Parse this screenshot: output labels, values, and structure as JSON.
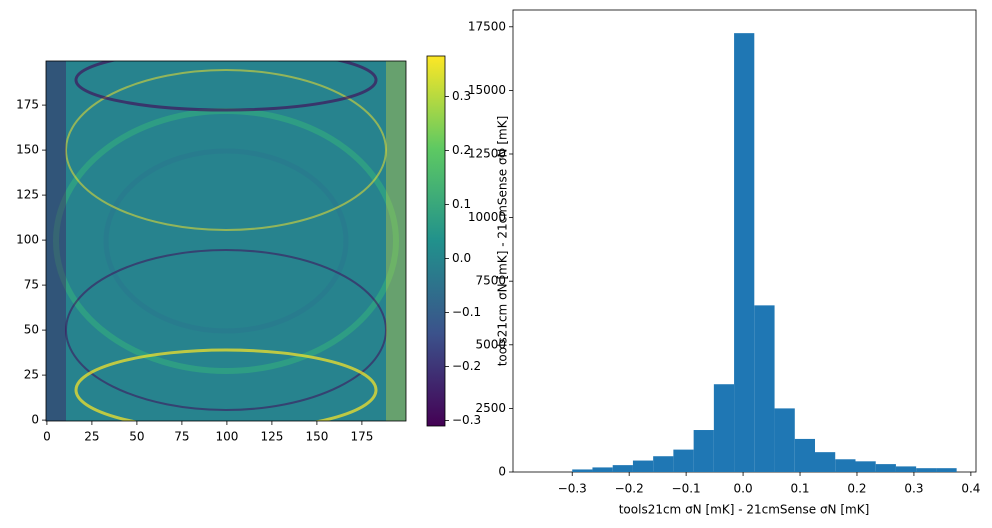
{
  "chart_data": [
    {
      "type": "heatmap",
      "xlim": [
        -0.5,
        199.5
      ],
      "ylim": [
        -0.5,
        199.5
      ],
      "xticks": [
        0,
        25,
        50,
        75,
        100,
        125,
        150,
        175
      ],
      "yticks": [
        0,
        25,
        50,
        75,
        100,
        125,
        150,
        175
      ],
      "colorbar": {
        "lim": [
          -0.31,
          0.375
        ],
        "ticks": [
          {
            "value": -0.3,
            "label": "−0.3"
          },
          {
            "value": -0.2,
            "label": "−0.2"
          },
          {
            "value": -0.1,
            "label": "−0.1"
          },
          {
            "value": 0,
            "label": "0.0"
          },
          0.1,
          0.2,
          0.3
        ]
      }
    },
    {
      "type": "histogram",
      "xlabel": "tools21cm σN [mK] - 21cmSense σN [mK]",
      "ylabel": "tools21cm  σN [mK] - 21cmSense σN [mK]",
      "color": "#1f77b4",
      "bins": [
        -0.3,
        -0.2645,
        -0.2289,
        -0.1934,
        -0.1579,
        -0.1224,
        -0.0868,
        -0.0513,
        -0.0158,
        0.0197,
        0.0553,
        0.0908,
        0.1263,
        0.1618,
        0.1974,
        0.2329,
        0.2684,
        0.3039,
        0.3395,
        0.375
      ],
      "values": [
        100,
        180,
        270,
        450,
        620,
        880,
        1650,
        3450,
        17250,
        6550,
        2500,
        1300,
        780,
        500,
        420,
        310,
        220,
        150,
        150
      ],
      "xlim": [
        -0.404,
        0.409
      ],
      "ylim": [
        0,
        18160
      ],
      "xticks": [
        {
          "value": -0.3,
          "label": "−0.3"
        },
        {
          "value": -0.2,
          "label": "−0.2"
        },
        {
          "value": -0.1,
          "label": "−0.1"
        },
        {
          "value": 0,
          "label": "0.0"
        },
        0.1,
        0.2,
        0.3,
        0.4
      ],
      "yticks": [
        0,
        2500,
        5000,
        7500,
        10000,
        12500,
        15000,
        17500
      ]
    }
  ]
}
